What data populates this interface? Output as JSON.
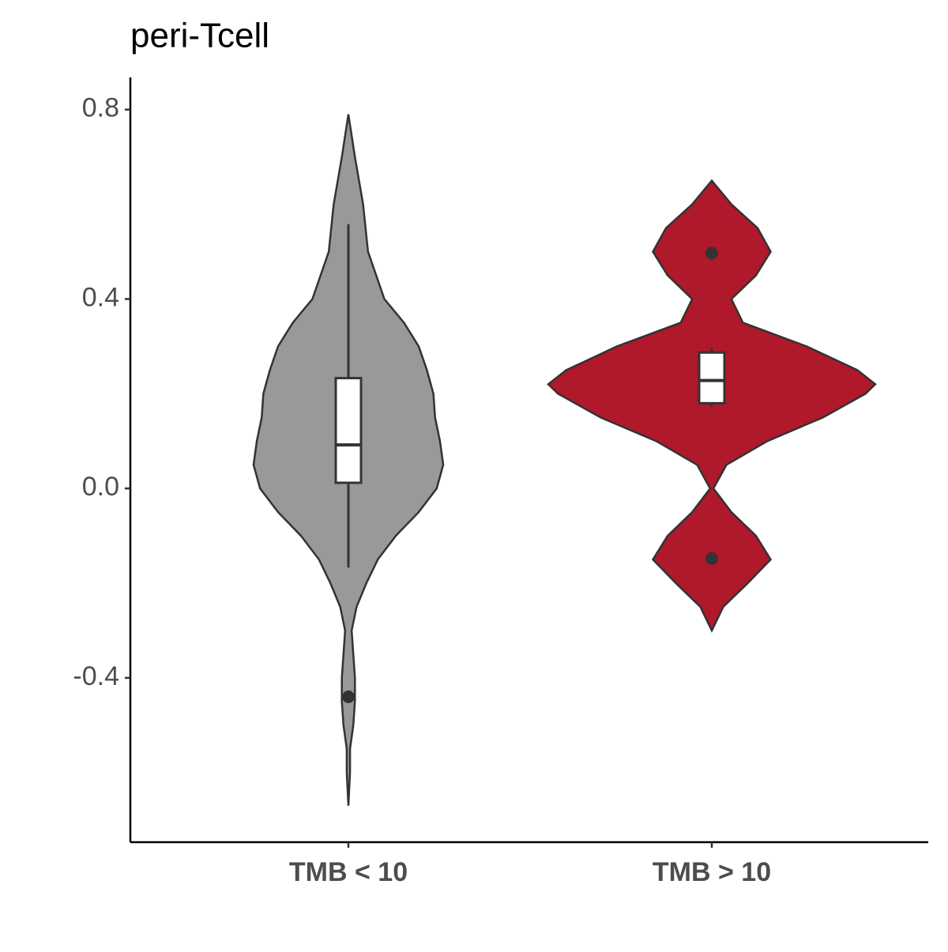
{
  "chart_data": {
    "type": "violin",
    "title": "peri-Tcell",
    "categories": [
      "TMB < 10",
      "TMB > 10"
    ],
    "ylim": [
      -0.747,
      0.868
    ],
    "yticks": [
      {
        "value": -0.4,
        "label": "-0.4"
      },
      {
        "value": 0,
        "label": "0.0"
      },
      {
        "value": 0.4,
        "label": "0.4"
      },
      {
        "value": 0.8,
        "label": "0.8"
      }
    ],
    "grid": false,
    "series": [
      {
        "color": "#999999",
        "violin": {
          "y": [
            0.79,
            0.7,
            0.6,
            0.5,
            0.4,
            0.35,
            0.3,
            0.25,
            0.2,
            0.15,
            0.1,
            0.05,
            0.0,
            -0.05,
            -0.1,
            -0.15,
            -0.2,
            -0.25,
            -0.3,
            -0.35,
            -0.4,
            -0.45,
            -0.5,
            -0.55,
            -0.6,
            -0.67
          ],
          "width": [
            0,
            0.04,
            0.09,
            0.12,
            0.22,
            0.34,
            0.43,
            0.48,
            0.52,
            0.53,
            0.56,
            0.58,
            0.54,
            0.43,
            0.29,
            0.18,
            0.11,
            0.05,
            0.02,
            0.03,
            0.04,
            0.04,
            0.03,
            0.01,
            0.01,
            0
          ]
        },
        "box": {
          "whisker_low": -0.167,
          "q1": 0.012,
          "median": 0.092,
          "q3": 0.233,
          "whisker_high": 0.558
        },
        "outliers": [
          -0.44
        ]
      },
      {
        "color": "#B0182B",
        "violin": {
          "y": [
            0.65,
            0.6,
            0.55,
            0.5,
            0.45,
            0.4,
            0.35,
            0.3,
            0.25,
            0.22,
            0.2,
            0.15,
            0.1,
            0.05,
            0.0,
            -0.05,
            -0.1,
            -0.15,
            -0.2,
            -0.25,
            -0.3
          ],
          "width": [
            0,
            0.12,
            0.28,
            0.36,
            0.27,
            0.12,
            0.19,
            0.58,
            0.89,
            1,
            0.94,
            0.68,
            0.34,
            0.09,
            0.01,
            0.12,
            0.27,
            0.36,
            0.22,
            0.07,
            0
          ]
        },
        "box": {
          "whisker_low": 0.173,
          "q1": 0.18,
          "median": 0.228,
          "q3": 0.287,
          "whisker_high": 0.297
        },
        "outliers": [
          0.497,
          -0.148
        ]
      }
    ]
  }
}
